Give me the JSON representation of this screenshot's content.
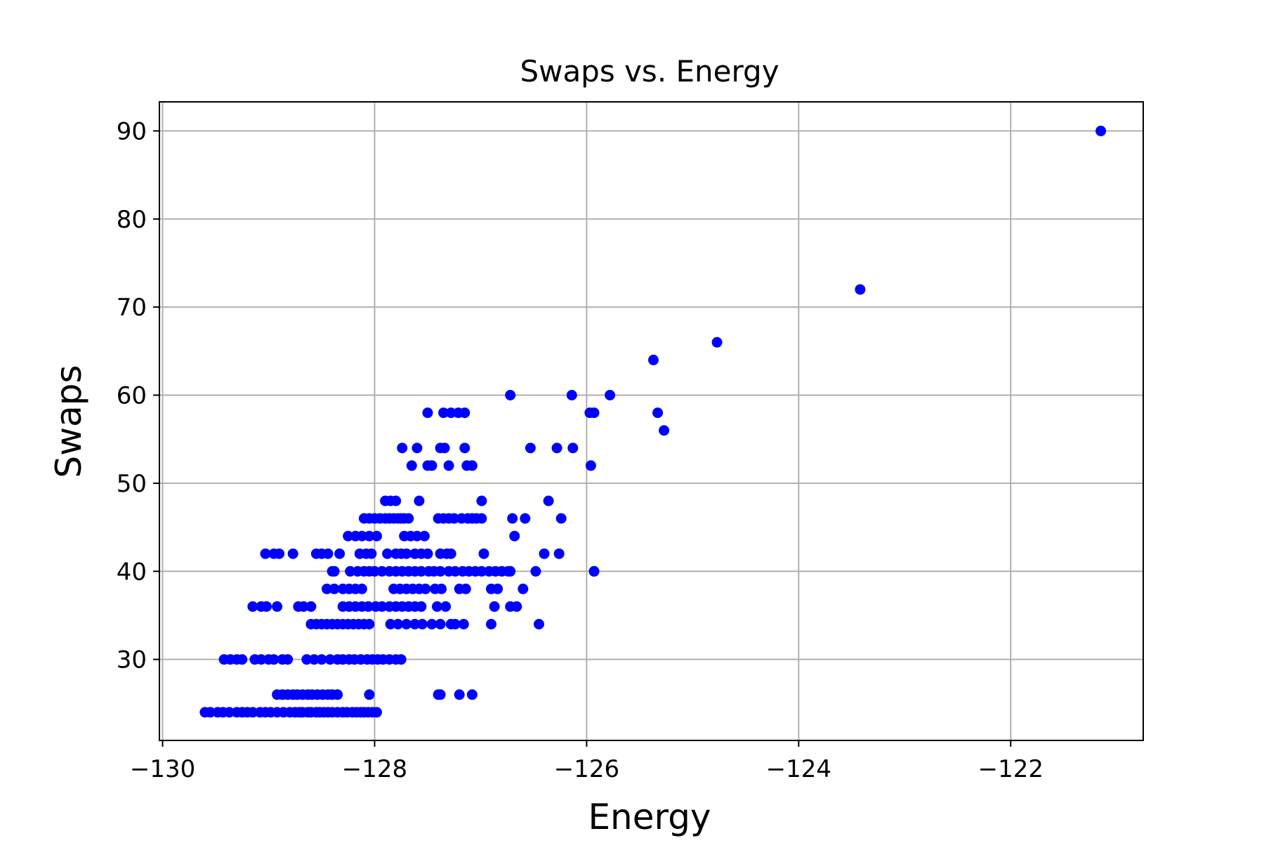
{
  "chart_data": {
    "type": "scatter",
    "title": "Swaps vs. Energy",
    "xlabel": "Energy",
    "ylabel": "Swaps",
    "xlim": [
      -130.03,
      -120.75
    ],
    "ylim": [
      20.8,
      93.3
    ],
    "xticks": [
      -130,
      -128,
      -126,
      -124,
      -122
    ],
    "xtick_labels": [
      "−130",
      "−128",
      "−126",
      "−124",
      "−122"
    ],
    "yticks": [
      30,
      40,
      50,
      60,
      70,
      80,
      90
    ],
    "ytick_labels": [
      "30",
      "40",
      "50",
      "60",
      "70",
      "80",
      "90"
    ],
    "grid": true,
    "marker_color": "#0000ff",
    "series": [
      {
        "x": [
          -121.15,
          -123.42,
          -124.77,
          -125.37,
          -125.33,
          -125.27,
          -126.72,
          -126.14,
          -125.78,
          -125.97,
          -125.93,
          -125.96,
          -125.93,
          -127.5,
          -127.35,
          -127.28,
          -127.21,
          -127.15,
          -127.74,
          -127.6,
          -127.38,
          -127.34,
          -127.15,
          -126.53,
          -126.28,
          -126.13,
          -127.65,
          -127.5,
          -127.46,
          -127.3,
          -127.13,
          -127.08,
          -127.9,
          -127.85,
          -127.8,
          -127.58,
          -126.99,
          -126.36,
          -128.1,
          -128.05,
          -128.0,
          -127.95,
          -127.9,
          -127.86,
          -127.82,
          -127.78,
          -127.75,
          -127.72,
          -127.68,
          -127.4,
          -127.35,
          -127.3,
          -127.25,
          -127.18,
          -127.12,
          -127.08,
          -127.04,
          -126.99,
          -126.7,
          -126.58,
          -126.24,
          -128.25,
          -128.18,
          -128.12,
          -128.05,
          -127.98,
          -127.72,
          -127.66,
          -127.6,
          -127.53,
          -126.68,
          -129.03,
          -128.95,
          -128.9,
          -128.77,
          -128.55,
          -128.5,
          -128.44,
          -128.33,
          -128.14,
          -128.08,
          -128.03,
          -127.88,
          -127.8,
          -127.75,
          -127.7,
          -127.62,
          -127.56,
          -127.5,
          -127.38,
          -127.32,
          -127.28,
          -126.97,
          -126.4,
          -126.26,
          -128.4,
          -128.38,
          -128.23,
          -128.16,
          -128.1,
          -128.05,
          -128.0,
          -127.93,
          -127.86,
          -127.8,
          -127.74,
          -127.68,
          -127.62,
          -127.56,
          -127.49,
          -127.44,
          -127.38,
          -127.3,
          -127.24,
          -127.17,
          -127.11,
          -127.05,
          -126.99,
          -126.92,
          -126.86,
          -126.8,
          -126.74,
          -126.72,
          -126.48,
          -125.93,
          -128.45,
          -128.38,
          -128.3,
          -128.24,
          -128.18,
          -128.12,
          -127.82,
          -127.76,
          -127.7,
          -127.64,
          -127.58,
          -127.52,
          -127.43,
          -127.37,
          -127.2,
          -127.14,
          -126.9,
          -126.84,
          -126.6,
          -129.15,
          -129.07,
          -129.02,
          -128.92,
          -128.72,
          -128.67,
          -128.6,
          -128.3,
          -128.24,
          -128.18,
          -128.12,
          -128.06,
          -127.99,
          -127.93,
          -127.86,
          -127.8,
          -127.74,
          -127.68,
          -127.62,
          -127.56,
          -127.41,
          -127.33,
          -126.87,
          -126.72,
          -126.66,
          -128.6,
          -128.55,
          -128.5,
          -128.45,
          -128.4,
          -128.35,
          -128.3,
          -128.25,
          -128.2,
          -128.15,
          -128.1,
          -128.05,
          -127.85,
          -127.78,
          -127.7,
          -127.62,
          -127.55,
          -127.46,
          -127.38,
          -127.28,
          -127.24,
          -127.16,
          -126.9,
          -126.45,
          -129.42,
          -129.36,
          -129.3,
          -129.25,
          -129.13,
          -129.07,
          -129.0,
          -128.95,
          -128.87,
          -128.82,
          -128.64,
          -128.57,
          -128.5,
          -128.42,
          -128.35,
          -128.3,
          -128.24,
          -128.19,
          -128.13,
          -128.07,
          -128.02,
          -127.97,
          -127.92,
          -127.86,
          -127.8,
          -127.75,
          -128.92,
          -128.87,
          -128.82,
          -128.77,
          -128.73,
          -128.68,
          -128.63,
          -128.59,
          -128.54,
          -128.49,
          -128.44,
          -128.4,
          -128.35,
          -128.05,
          -127.4,
          -127.38,
          -127.2,
          -127.08,
          -129.6,
          -129.55,
          -129.48,
          -129.43,
          -129.37,
          -129.3,
          -129.25,
          -129.2,
          -129.15,
          -129.08,
          -129.03,
          -128.98,
          -128.92,
          -128.86,
          -128.8,
          -128.75,
          -128.71,
          -128.68,
          -128.63,
          -128.6,
          -128.55,
          -128.52,
          -128.48,
          -128.44,
          -128.4,
          -128.35,
          -128.3,
          -128.26,
          -128.21,
          -128.17,
          -128.13,
          -128.1,
          -128.06,
          -128.02,
          -127.98
        ],
        "y": [
          90,
          72,
          66,
          64,
          58,
          56,
          60,
          60,
          60,
          58,
          58,
          52,
          40,
          58,
          58,
          58,
          58,
          58,
          54,
          54,
          54,
          54,
          54,
          54,
          54,
          54,
          52,
          52,
          52,
          52,
          52,
          52,
          48,
          48,
          48,
          48,
          48,
          48,
          46,
          46,
          46,
          46,
          46,
          46,
          46,
          46,
          46,
          46,
          46,
          46,
          46,
          46,
          46,
          46,
          46,
          46,
          46,
          46,
          46,
          46,
          46,
          44,
          44,
          44,
          44,
          44,
          44,
          44,
          44,
          44,
          44,
          42,
          42,
          42,
          42,
          42,
          42,
          42,
          42,
          42,
          42,
          42,
          42,
          42,
          42,
          42,
          42,
          42,
          42,
          42,
          42,
          42,
          42,
          42,
          42,
          40,
          40,
          40,
          40,
          40,
          40,
          40,
          40,
          40,
          40,
          40,
          40,
          40,
          40,
          40,
          40,
          40,
          40,
          40,
          40,
          40,
          40,
          40,
          40,
          40,
          40,
          40,
          40,
          40,
          40,
          38,
          38,
          38,
          38,
          38,
          38,
          38,
          38,
          38,
          38,
          38,
          38,
          38,
          38,
          38,
          38,
          38,
          38,
          38,
          36,
          36,
          36,
          36,
          36,
          36,
          36,
          36,
          36,
          36,
          36,
          36,
          36,
          36,
          36,
          36,
          36,
          36,
          36,
          36,
          36,
          36,
          36,
          36,
          36,
          34,
          34,
          34,
          34,
          34,
          34,
          34,
          34,
          34,
          34,
          34,
          34,
          34,
          34,
          34,
          34,
          34,
          34,
          34,
          34,
          34,
          34,
          34,
          34,
          30,
          30,
          30,
          30,
          30,
          30,
          30,
          30,
          30,
          30,
          30,
          30,
          30,
          30,
          30,
          30,
          30,
          30,
          30,
          30,
          30,
          30,
          30,
          30,
          30,
          30,
          26,
          26,
          26,
          26,
          26,
          26,
          26,
          26,
          26,
          26,
          26,
          26,
          26,
          26,
          26,
          26,
          26,
          26,
          24,
          24,
          24,
          24,
          24,
          24,
          24,
          24,
          24,
          24,
          24,
          24,
          24,
          24,
          24,
          24,
          24,
          24,
          24,
          24,
          24,
          24,
          24,
          24,
          24,
          24,
          24,
          24,
          24,
          24,
          24,
          24,
          24,
          24,
          24
        ]
      }
    ]
  }
}
